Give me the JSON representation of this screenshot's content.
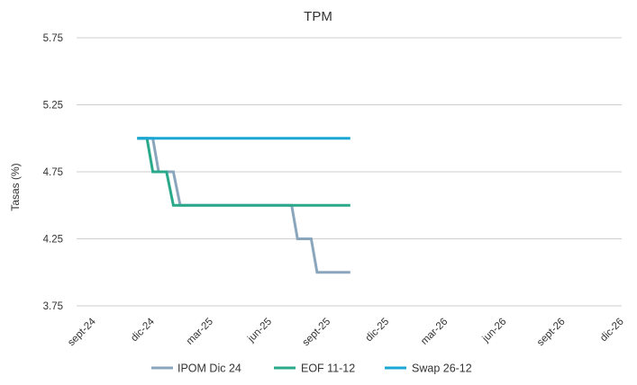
{
  "chart_data": {
    "type": "line",
    "title": "TPM",
    "ylabel": "Tasas (%)",
    "xlabel": "",
    "ylim": [
      3.75,
      5.75
    ],
    "yticks": [
      3.75,
      4.25,
      4.75,
      5.25,
      5.75
    ],
    "ytick_labels": [
      "3.75",
      "4.25",
      "4.75",
      "5.25",
      "5.75"
    ],
    "x_categories": [
      "sept-24",
      "dic-24",
      "mar-25",
      "jun-25",
      "sept-25",
      "dic-25",
      "mar-26",
      "jun-26",
      "sept-26",
      "dic-26"
    ],
    "grid": true,
    "legend_position": "bottom",
    "series": [
      {
        "name": "IPOM Dic 24",
        "color": "#8aa6bd",
        "points": [
          [
            3.1,
            5.0
          ],
          [
            3.9,
            5.0
          ],
          [
            4.2,
            4.75
          ],
          [
            4.95,
            4.75
          ],
          [
            5.3,
            4.5
          ],
          [
            11.0,
            4.5
          ],
          [
            11.3,
            4.25
          ],
          [
            12.0,
            4.25
          ],
          [
            12.3,
            4.0
          ],
          [
            14.0,
            4.0
          ]
        ]
      },
      {
        "name": "EOF 11-12",
        "color": "#2aa98a",
        "points": [
          [
            3.1,
            5.0
          ],
          [
            3.6,
            5.0
          ],
          [
            3.9,
            4.75
          ],
          [
            4.6,
            4.75
          ],
          [
            4.95,
            4.5
          ],
          [
            14.0,
            4.5
          ]
        ]
      },
      {
        "name": "Swap 26-12",
        "color": "#1aa7d6",
        "points": [
          [
            3.1,
            5.0
          ],
          [
            14.0,
            5.0
          ]
        ]
      }
    ]
  }
}
